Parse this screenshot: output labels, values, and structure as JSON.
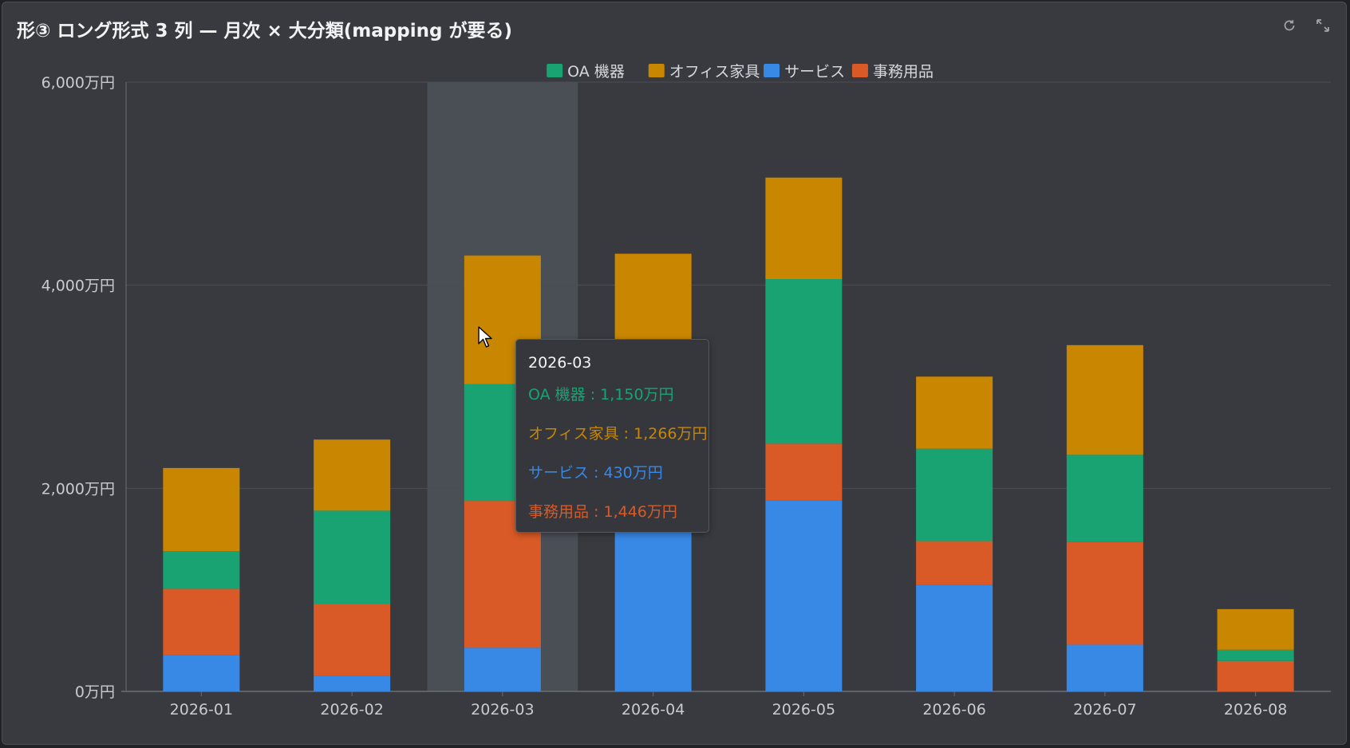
{
  "header": {
    "title": "形③ ロング形式 3 列 — 月次 × 大分類(mapping が要る)",
    "icons": {
      "refresh": "refresh-icon",
      "fullscreen": "expand-icon"
    }
  },
  "tooltip": {
    "title": "2026-03",
    "rows": [
      {
        "text": "OA 機器 : 1,150万円",
        "color": "#1aa372"
      },
      {
        "text": "オフィス家具 : 1,266万円",
        "color": "#c98600"
      },
      {
        "text": "サービス : 430万円",
        "color": "#3888e6"
      },
      {
        "text": "事務用品 : 1,446万円",
        "color": "#d95a26"
      }
    ]
  },
  "chart_data": {
    "type": "bar",
    "stacked": true,
    "categories": [
      "2026-01",
      "2026-02",
      "2026-03",
      "2026-04",
      "2026-05",
      "2026-06",
      "2026-07",
      "2026-08"
    ],
    "highlighted_category": "2026-03",
    "ylim": [
      0,
      6000
    ],
    "yticks": [
      0,
      2000,
      4000,
      6000
    ],
    "ytick_labels": [
      "0万円",
      "2,000万円",
      "4,000万円",
      "6,000万円"
    ],
    "grid": true,
    "legend_position": "top-center",
    "series": [
      {
        "name": "サービス",
        "color": "#3888e6",
        "values": [
          360,
          150,
          430,
          1640,
          1880,
          1050,
          460,
          0
        ]
      },
      {
        "name": "事務用品",
        "color": "#d95a26",
        "values": [
          650,
          710,
          1446,
          0,
          560,
          430,
          1010,
          300
        ]
      },
      {
        "name": "OA 機器",
        "color": "#1aa372",
        "values": [
          370,
          920,
          1150,
          1090,
          1620,
          910,
          860,
          110
        ]
      },
      {
        "name": "オフィス家具",
        "color": "#c98600",
        "values": [
          820,
          700,
          1266,
          1580,
          1000,
          710,
          1080,
          400
        ]
      }
    ],
    "legend_order": [
      "OA 機器",
      "オフィス家具",
      "サービス",
      "事務用品"
    ]
  }
}
